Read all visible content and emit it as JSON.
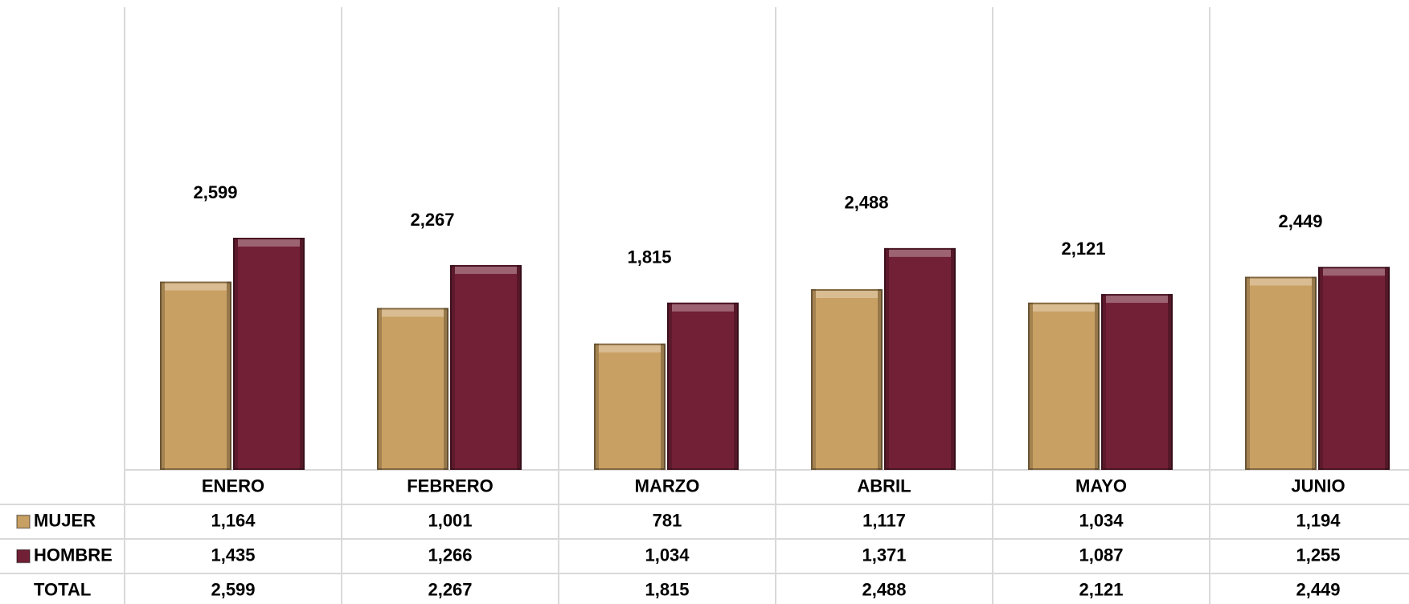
{
  "chart_data": {
    "type": "bar",
    "categories": [
      "ENERO",
      "FEBRERO",
      "MARZO",
      "ABRIL",
      "MAYO",
      "JUNIO"
    ],
    "series": [
      {
        "name": "MUJER",
        "color": "#c9a063",
        "values": [
          1164,
          1001,
          781,
          1117,
          1034,
          1194
        ],
        "value_labels": [
          "1,164",
          "1,001",
          "781",
          "1,117",
          "1,034",
          "1,194"
        ]
      },
      {
        "name": "HOMBRE",
        "color": "#722036",
        "values": [
          1435,
          1266,
          1034,
          1371,
          1087,
          1255
        ],
        "value_labels": [
          "1,435",
          "1,266",
          "1,034",
          "1,371",
          "1,087",
          "1,255"
        ]
      }
    ],
    "total": {
      "name": "TOTAL",
      "values": [
        2599,
        2267,
        1815,
        2488,
        2121,
        2449
      ],
      "value_labels": [
        "2,599",
        "2,267",
        "1,815",
        "2,488",
        "2,121",
        "2,449"
      ]
    },
    "ylim": [
      0,
      2860
    ]
  }
}
